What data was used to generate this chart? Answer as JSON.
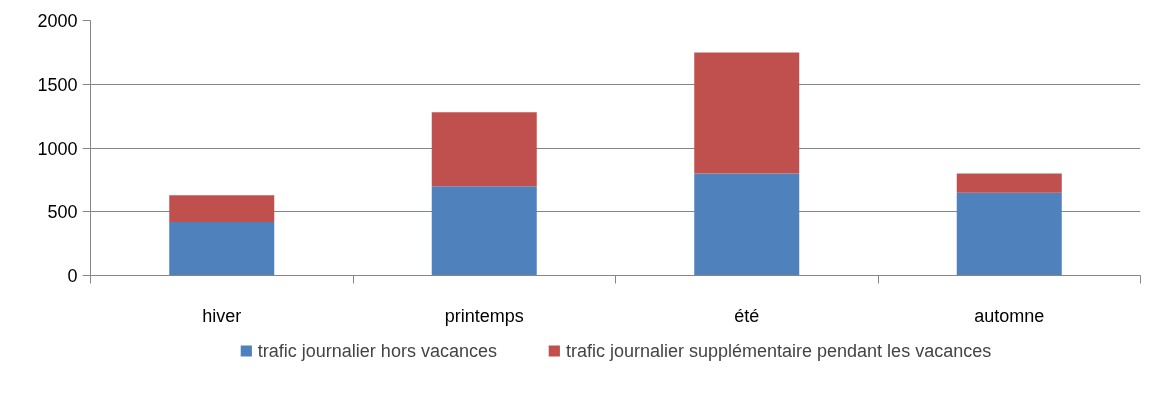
{
  "chart_data": {
    "type": "bar",
    "stacked": true,
    "categories": [
      "hiver",
      "printemps",
      "été",
      "automne"
    ],
    "series": [
      {
        "name": "trafic journalier hors vacances",
        "color": "#4f81bd",
        "values": [
          420,
          700,
          800,
          650
        ]
      },
      {
        "name": "trafic journalier supplémentaire pendant les vacances",
        "color": "#c0504d",
        "values": [
          210,
          580,
          950,
          150
        ]
      }
    ],
    "ylim": [
      0,
      2000
    ],
    "yticks": [
      0,
      500,
      1000,
      1500,
      2000
    ],
    "grid": "y",
    "legend": "bottom"
  }
}
